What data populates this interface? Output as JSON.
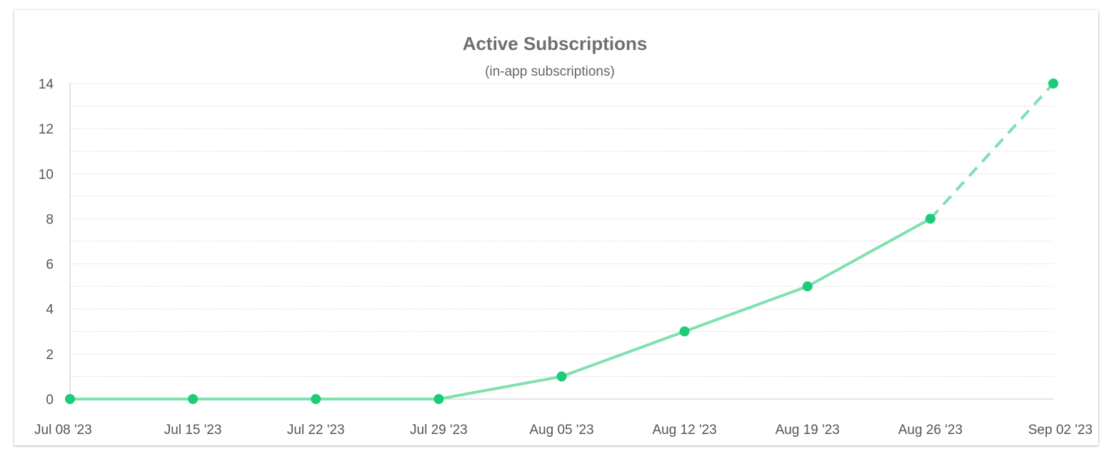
{
  "chart_data": {
    "type": "line",
    "title": "Active Subscriptions",
    "subtitle": "(in-app subscriptions)",
    "xlabel": "",
    "ylabel": "",
    "categories": [
      "Jul 08 '23",
      "Jul 15 '23",
      "Jul 22 '23",
      "Jul 29 '23",
      "Aug 05 '23",
      "Aug 12 '23",
      "Aug 19 '23",
      "Aug 26 '23",
      "Sep 02 '23"
    ],
    "series": [
      {
        "values": [
          0,
          0,
          0,
          0,
          1,
          3,
          5,
          8,
          14
        ],
        "projected_last_segment": true
      }
    ],
    "ylim": [
      0,
      14
    ],
    "yticks": [
      0,
      2,
      4,
      6,
      8,
      10,
      12,
      14
    ],
    "grid": true,
    "legend": "none",
    "colors": {
      "line": "#7fe0b0",
      "point": "#1ccc79",
      "grid": "#d9d9d9",
      "axis": "#c8c8c8"
    }
  }
}
